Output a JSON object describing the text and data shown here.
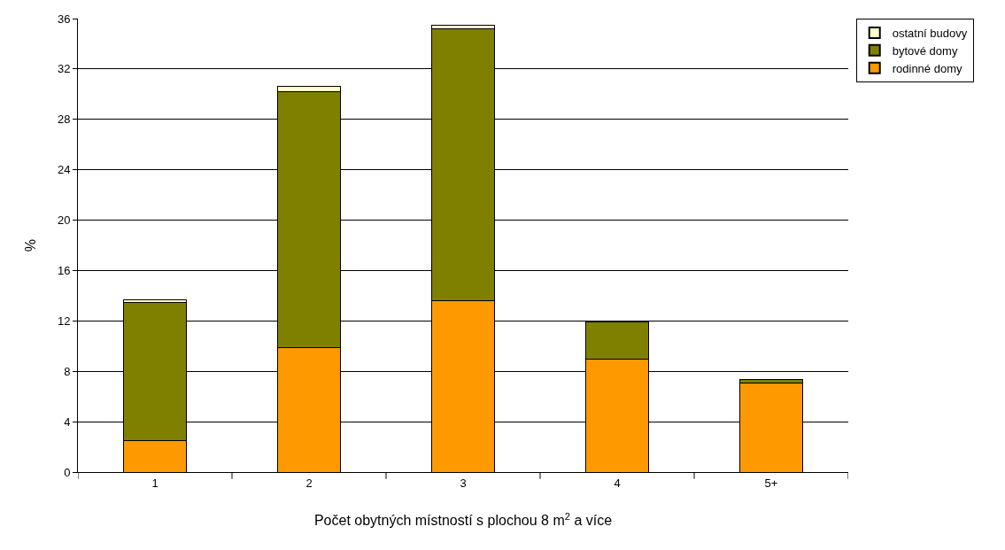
{
  "chart_data": {
    "type": "bar",
    "stacked": true,
    "ylabel": "%",
    "xlabel": "Počet obytných místností s plochou 8 m$^{2}$ a více",
    "categories": [
      "1",
      "2",
      "3",
      "4",
      "5+"
    ],
    "series": [
      {
        "name": "rodinné domy",
        "color": "#ff9900",
        "values": [
          2.5,
          9.9,
          13.6,
          9.0,
          7.1
        ]
      },
      {
        "name": "bytové domy",
        "color": "#808000",
        "values": [
          11.0,
          20.3,
          21.6,
          2.9,
          0.25
        ]
      },
      {
        "name": "ostatní budovy",
        "color": "#ffffcc",
        "values": [
          0.2,
          0.4,
          0.3,
          0.05,
          null
        ]
      }
    ],
    "ylim": [
      0,
      36
    ],
    "yticks": [
      0,
      4,
      8,
      12,
      16,
      20,
      24,
      28,
      32,
      36
    ],
    "grid": "y",
    "legend": "top right"
  }
}
